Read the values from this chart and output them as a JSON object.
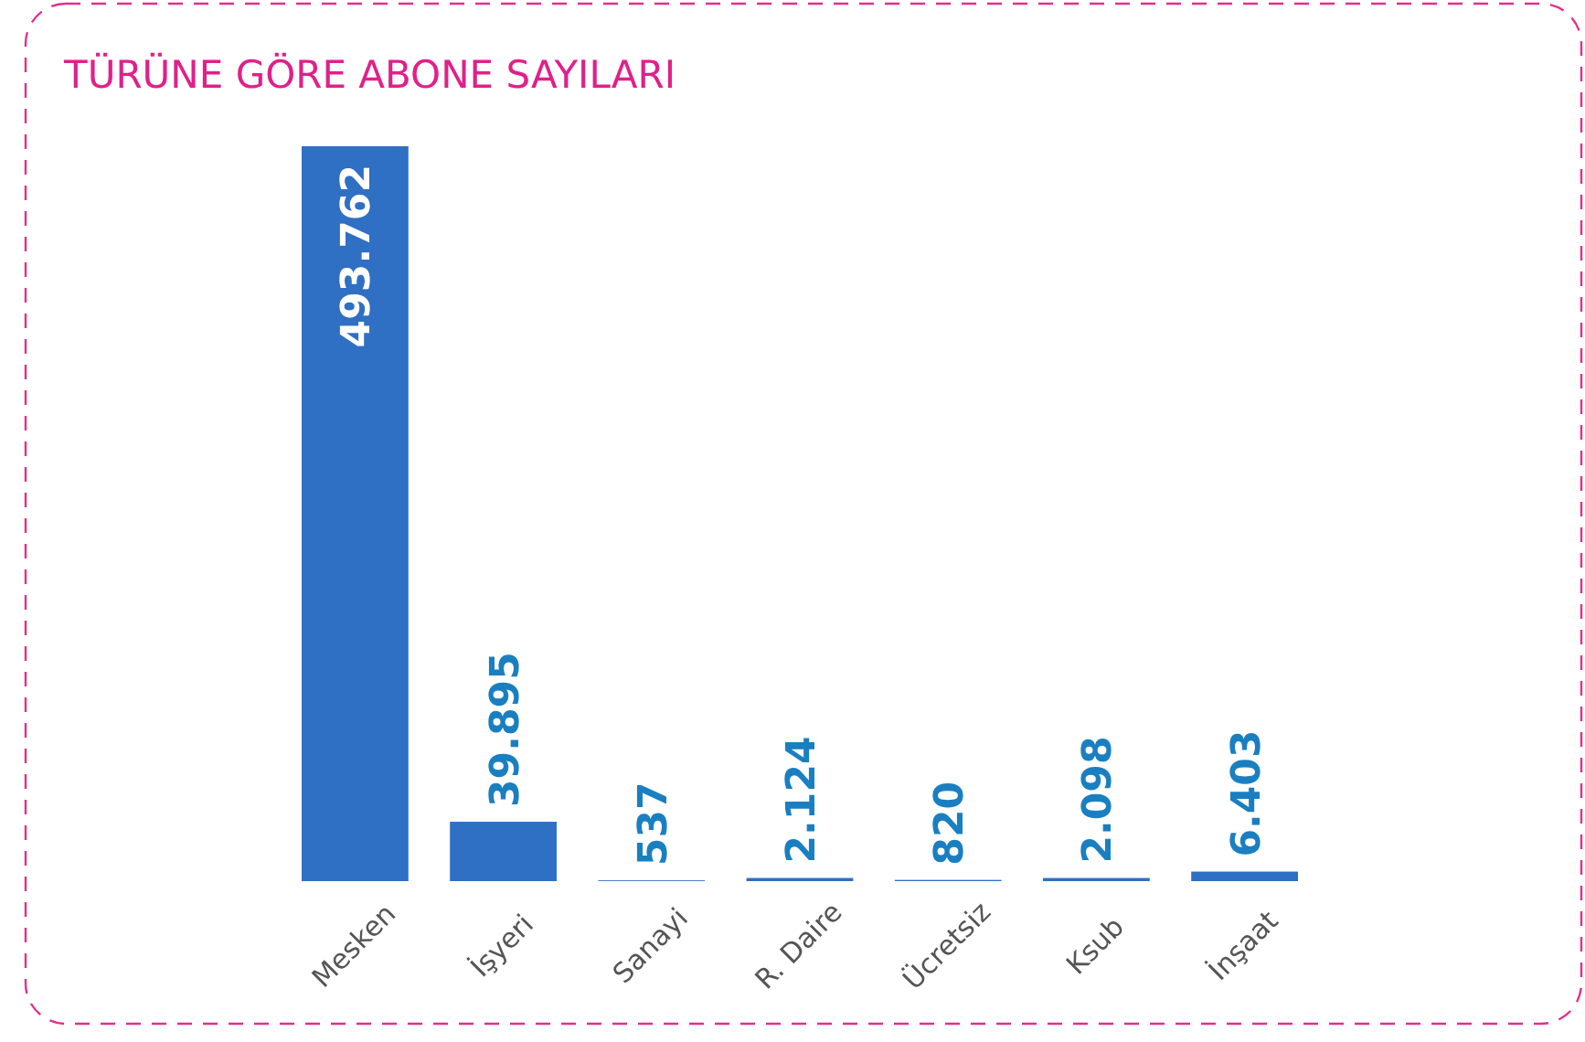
{
  "chart_data": {
    "type": "bar",
    "title": "TÜRÜNE GÖRE ABONE SAYILARI",
    "categories": [
      "Mesken",
      "İşyeri",
      "Sanayi",
      "R. Daire",
      "Ücretsiz",
      "Ksub",
      "İnşaat"
    ],
    "values": [
      493762,
      39895,
      537,
      2124,
      820,
      2098,
      6403
    ],
    "value_labels": [
      "493.762",
      "39.895",
      "537",
      "2.124",
      "820",
      "2.098",
      "6.403"
    ],
    "color": "#2f6fc4",
    "tick_labels": "x"
  }
}
